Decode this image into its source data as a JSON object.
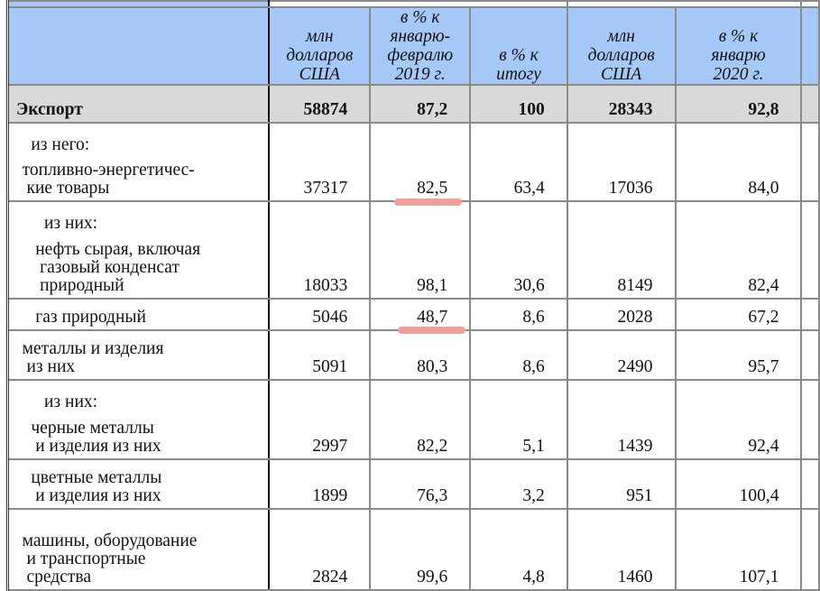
{
  "header": {
    "columns": [
      "млн\nдолларов\nСША",
      "в % к\nянварю-\nфевралю\n2019 г.",
      "в % к\nитогу",
      "млн\nдолларов\nСША",
      "в % к\nянварю\n2020 г."
    ]
  },
  "rows": [
    {
      "note": "",
      "label": "Экспорт",
      "values": [
        "58874",
        "87,2",
        "100",
        "28343",
        "92,8"
      ],
      "bold": true
    },
    {
      "note": "     из него:",
      "label": "   топливно-энергетичес-\n    кие товары",
      "values": [
        "37317",
        "82,5",
        "63,4",
        "17036",
        "84,0"
      ]
    },
    {
      "note": "        из них:",
      "label": "      нефть сырая, включая\n       газовый конденсат\n       природный",
      "values": [
        "18033",
        "98,1",
        "30,6",
        "8149",
        "82,4"
      ]
    },
    {
      "note": "",
      "label": "      газ природный",
      "values": [
        "5046",
        "48,7",
        "8,6",
        "2028",
        "67,2"
      ]
    },
    {
      "note": "",
      "label": "   металлы и изделия\n    из них",
      "values": [
        "5091",
        "80,3",
        "8,6",
        "2490",
        "95,7"
      ]
    },
    {
      "note": "        из них:",
      "label": "     черные металлы\n      и изделия из них",
      "values": [
        "2997",
        "82,2",
        "5,1",
        "1439",
        "92,4"
      ]
    },
    {
      "note": "",
      "label": "     цветные металлы\n      и изделия из них",
      "values": [
        "1899",
        "76,3",
        "3,2",
        "951",
        "100,4"
      ]
    },
    {
      "note": "",
      "label": "   машины, оборудование\n    и транспортные\n    средства",
      "values": [
        "2824",
        "99,6",
        "4,8",
        "1460",
        "107,1"
      ]
    }
  ],
  "highlight_color": "#f0a09a",
  "header_color": "#a7c9f9",
  "total_row_color": "#d9d9d9"
}
